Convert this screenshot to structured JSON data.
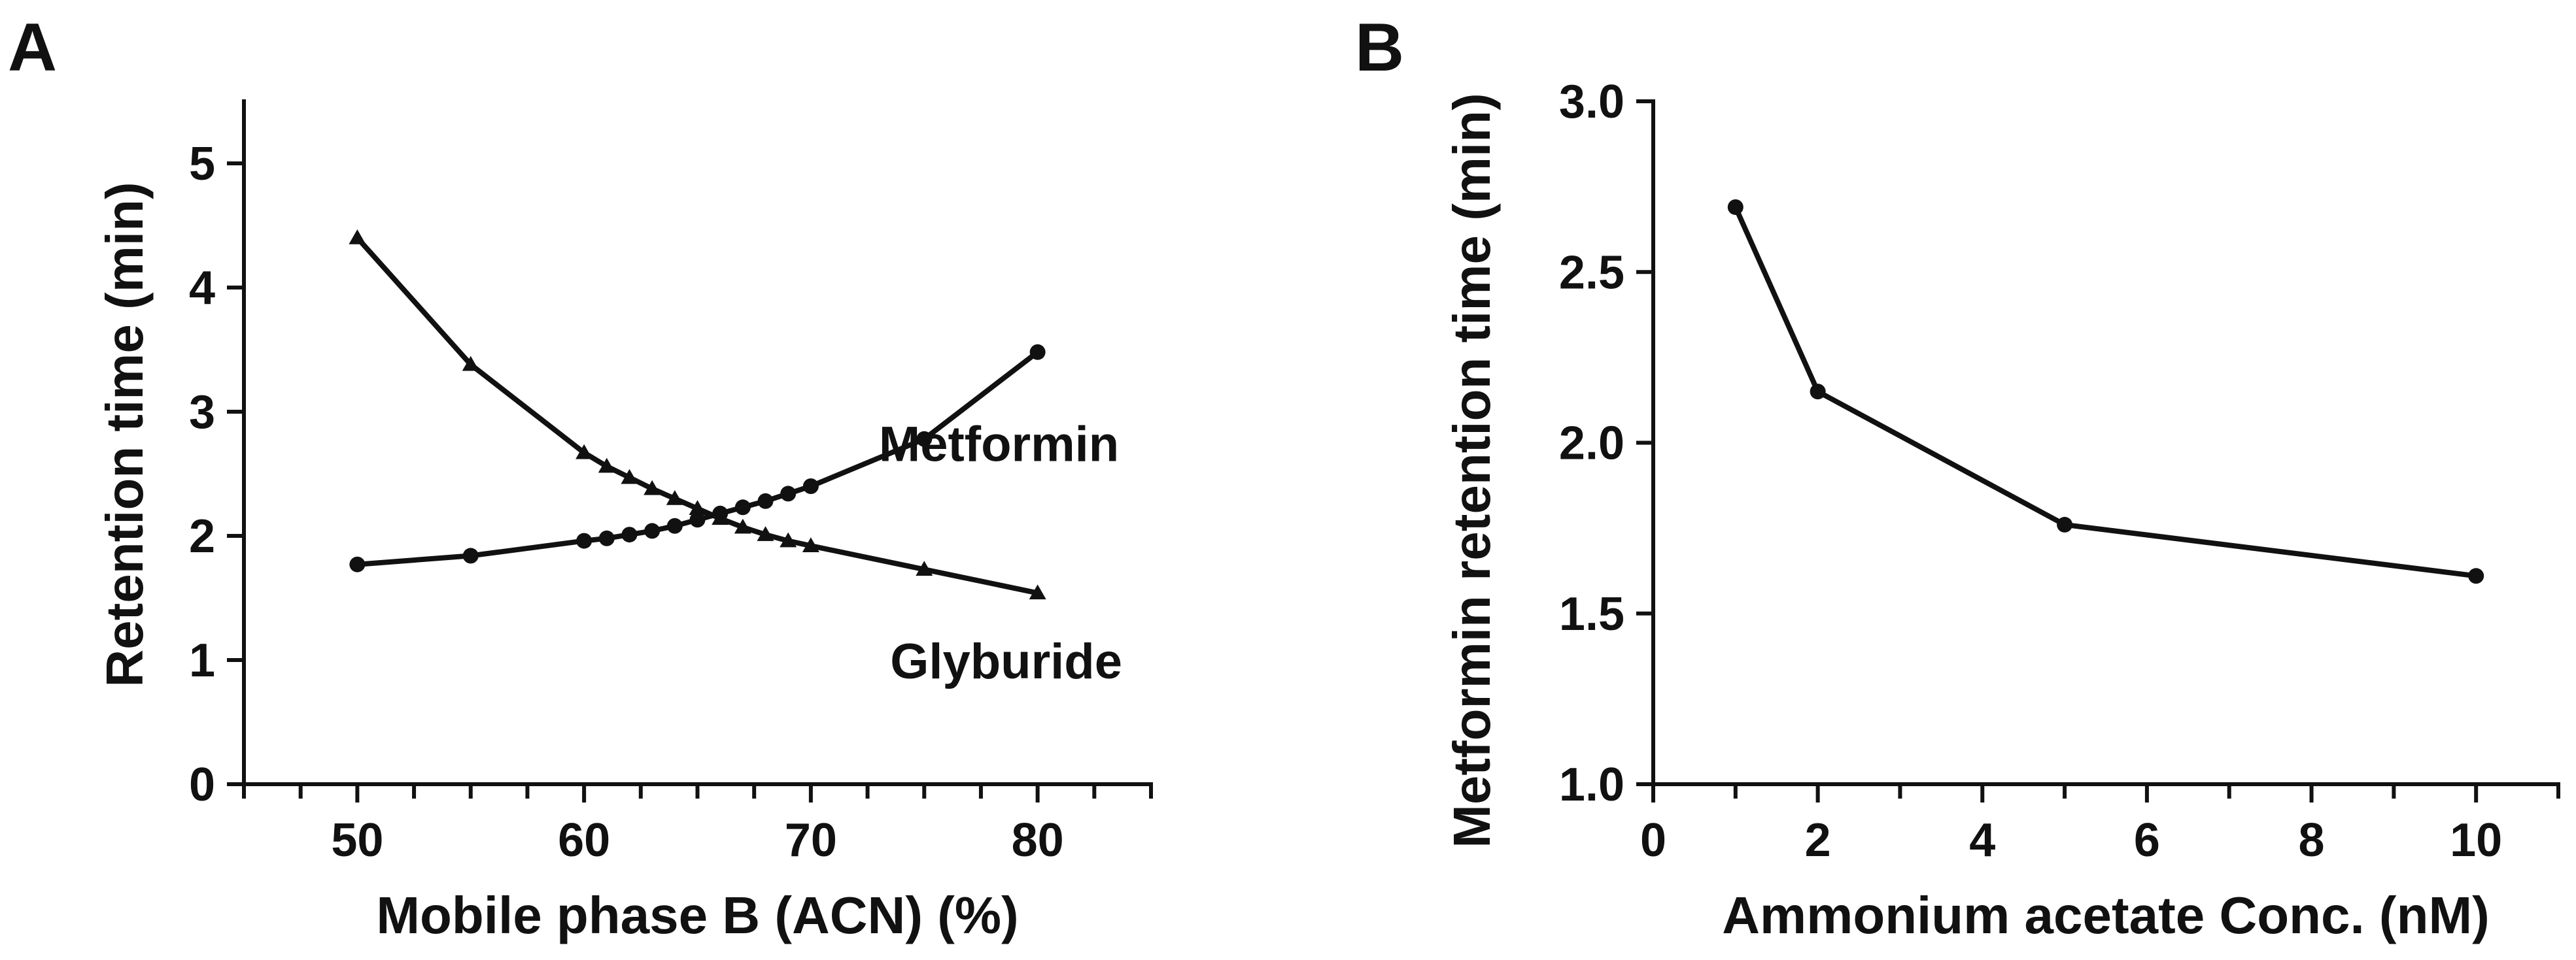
{
  "chart_data": [
    {
      "panel_label": "A",
      "type": "line",
      "title": "",
      "xlabel": "Mobile phase B (ACN) (%)",
      "ylabel": "Retention time (min)",
      "xlim": [
        45,
        85
      ],
      "ylim": [
        0,
        5.5
      ],
      "x_ticks": [
        50,
        60,
        70,
        80
      ],
      "x_minor_ticks": [
        45,
        47.5,
        52.5,
        55,
        57.5,
        62.5,
        65,
        67.5,
        72.5,
        75,
        77.5,
        82.5,
        85
      ],
      "y_ticks": [
        0,
        1,
        2,
        3,
        4,
        5
      ],
      "x_tick_labels": [
        "50",
        "60",
        "70",
        "80"
      ],
      "y_tick_labels": [
        "0",
        "1",
        "2",
        "3",
        "4",
        "5"
      ],
      "grid": false,
      "series": [
        {
          "name": "Metformin",
          "marker": "circle",
          "x": [
            50,
            55,
            60,
            61,
            62,
            63,
            64,
            65,
            66,
            67,
            68,
            69,
            70,
            75,
            80
          ],
          "y": [
            1.77,
            1.84,
            1.96,
            1.98,
            2.01,
            2.04,
            2.08,
            2.13,
            2.18,
            2.23,
            2.28,
            2.34,
            2.4,
            2.78,
            3.48
          ]
        },
        {
          "name": "Glyburide",
          "marker": "triangle",
          "x": [
            50,
            55,
            60,
            61,
            62,
            63,
            64,
            65,
            66,
            67,
            68,
            69,
            70,
            75,
            80
          ],
          "y": [
            4.4,
            3.38,
            2.67,
            2.56,
            2.47,
            2.38,
            2.3,
            2.22,
            2.14,
            2.07,
            2.01,
            1.96,
            1.92,
            1.73,
            1.54
          ]
        }
      ],
      "annotations": [
        {
          "text": "Metformin",
          "x": 73,
          "y": 2.75
        },
        {
          "text": "Glyburide",
          "x": 73.5,
          "y": 1.0
        }
      ]
    },
    {
      "panel_label": "B",
      "type": "line",
      "title": "",
      "xlabel": "Ammonium acetate Conc. (nM)",
      "ylabel": "Metformin retention time (min)",
      "xlim": [
        0,
        11
      ],
      "ylim": [
        1.0,
        3.0
      ],
      "x_ticks": [
        0,
        2,
        4,
        6,
        8,
        10
      ],
      "x_minor_ticks": [
        1,
        3,
        5,
        7,
        9,
        11
      ],
      "y_ticks": [
        1.0,
        1.5,
        2.0,
        2.5,
        3.0
      ],
      "x_tick_labels": [
        "0",
        "2",
        "4",
        "6",
        "8",
        "10"
      ],
      "y_tick_labels": [
        "1.0",
        "1.5",
        "2.0",
        "2.5",
        "3.0"
      ],
      "grid": false,
      "series": [
        {
          "name": "Metformin",
          "marker": "circle",
          "x": [
            1,
            2,
            5,
            10
          ],
          "y": [
            2.69,
            2.15,
            1.76,
            1.61
          ]
        }
      ]
    }
  ]
}
